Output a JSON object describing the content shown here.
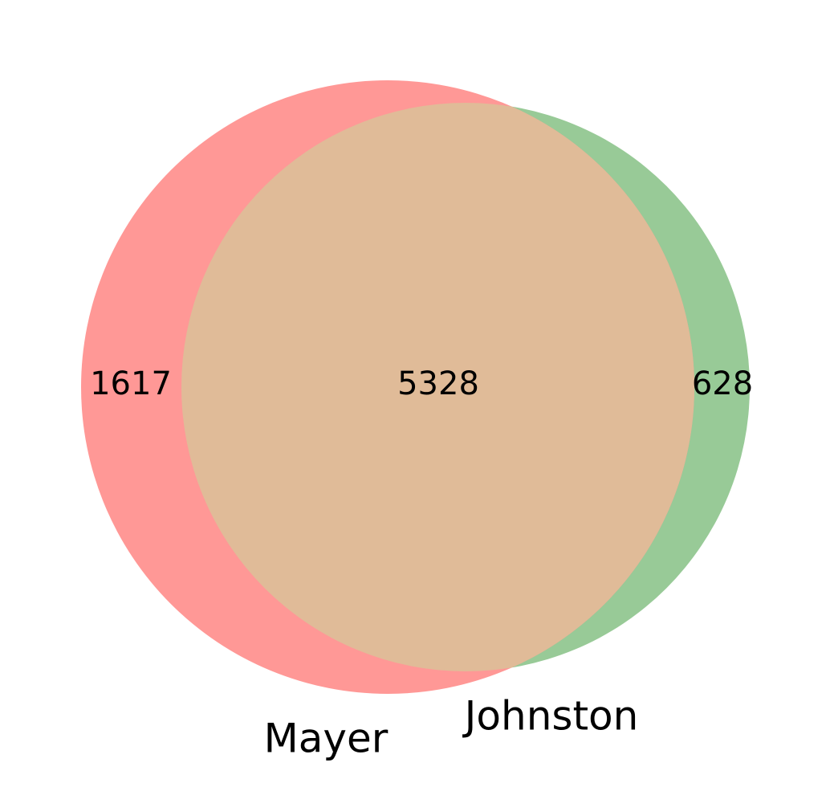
{
  "diagram": {
    "type": "venn2",
    "sets": [
      {
        "label": "Mayer",
        "color": "#ff9896"
      },
      {
        "label": "Johnston",
        "color": "#98ca97"
      }
    ],
    "overlap_color": "#e0bb98",
    "regions": {
      "only_a": "1617",
      "both": "5328",
      "only_b": "628"
    }
  }
}
